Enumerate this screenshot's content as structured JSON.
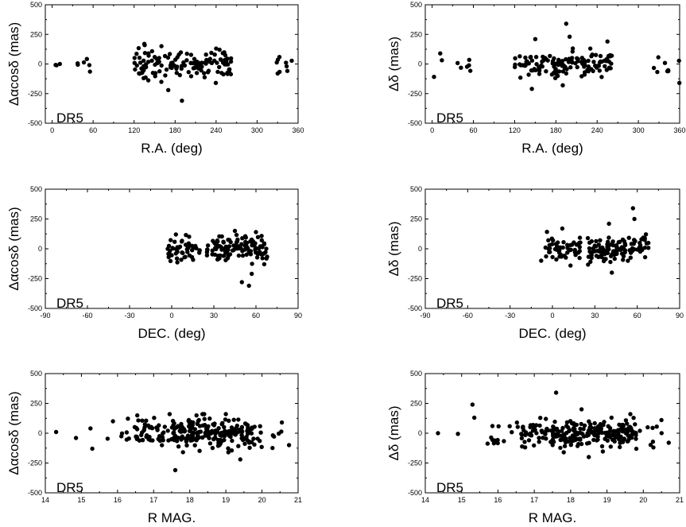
{
  "chart_data": [
    {
      "id": "ra_dra",
      "type": "scatter",
      "xlabel": "R.A. (deg)",
      "ylabel": "Δαcosδ (mas)",
      "annotation": "DR5",
      "xlim": [
        -10,
        360
      ],
      "ylim": [
        -500,
        500
      ],
      "xticks": [
        0,
        60,
        120,
        180,
        240,
        300,
        360
      ],
      "yticks": [
        -500,
        -250,
        0,
        250,
        500
      ],
      "x_clusters": [
        [
          2,
          15,
          3
        ],
        [
          36,
          58,
          6
        ],
        [
          120,
          262,
          135
        ],
        [
          322,
          360,
          9
        ]
      ],
      "y_sd": 55,
      "highlights": [
        [
          190,
          -310
        ],
        [
          170,
          -220
        ],
        [
          135,
          170
        ],
        [
          160,
          150
        ],
        [
          240,
          130
        ],
        [
          245,
          120
        ]
      ]
    },
    {
      "id": "ra_dd",
      "type": "scatter",
      "xlabel": "R.A. (deg)",
      "ylabel": "Δδ (mas)",
      "annotation": "DR5",
      "xlim": [
        -10,
        360
      ],
      "ylim": [
        -500,
        500
      ],
      "xticks": [
        0,
        60,
        120,
        180,
        240,
        300,
        360
      ],
      "yticks": [
        -500,
        -250,
        0,
        250,
        500
      ],
      "x_clusters": [
        [
          2,
          15,
          3
        ],
        [
          36,
          58,
          6
        ],
        [
          120,
          262,
          135
        ],
        [
          322,
          360,
          9
        ]
      ],
      "y_sd": 55,
      "highlights": [
        [
          195,
          340
        ],
        [
          200,
          230
        ],
        [
          150,
          210
        ],
        [
          255,
          190
        ],
        [
          145,
          -210
        ],
        [
          190,
          -180
        ],
        [
          230,
          130
        ]
      ]
    },
    {
      "id": "dec_dra",
      "type": "scatter",
      "xlabel": "DEC. (deg)",
      "ylabel": "Δαcosδ (mas)",
      "annotation": "DR5",
      "xlim": [
        -90,
        90
      ],
      "ylim": [
        -500,
        500
      ],
      "xticks": [
        -90,
        -60,
        -30,
        0,
        30,
        60,
        90
      ],
      "yticks": [
        -500,
        -250,
        0,
        250,
        500
      ],
      "x_clusters": [
        [
          -10,
          12,
          1
        ],
        [
          -3,
          20,
          50
        ],
        [
          25,
          68,
          120
        ]
      ],
      "y_sd": 55,
      "highlights": [
        [
          55,
          -310
        ],
        [
          50,
          -280
        ],
        [
          57,
          -210
        ],
        [
          3,
          120
        ],
        [
          45,
          150
        ],
        [
          60,
          140
        ]
      ]
    },
    {
      "id": "dec_dd",
      "type": "scatter",
      "xlabel": "DEC. (deg)",
      "ylabel": "Δδ (mas)",
      "annotation": "DR5",
      "xlim": [
        -90,
        90
      ],
      "ylim": [
        -500,
        500
      ],
      "xticks": [
        -90,
        -60,
        -30,
        0,
        30,
        60,
        90
      ],
      "yticks": [
        -500,
        -250,
        0,
        250,
        500
      ],
      "x_clusters": [
        [
          -12,
          12,
          1
        ],
        [
          -5,
          20,
          50
        ],
        [
          25,
          68,
          120
        ]
      ],
      "y_sd": 55,
      "highlights": [
        [
          57,
          340
        ],
        [
          58,
          250
        ],
        [
          40,
          210
        ],
        [
          7,
          170
        ],
        [
          42,
          -200
        ],
        [
          -8,
          -100
        ]
      ]
    },
    {
      "id": "mag_dra",
      "type": "scatter",
      "xlabel": "R MAG.",
      "ylabel": "Δαcosδ (mas)",
      "annotation": "DR5",
      "xlim": [
        14,
        21
      ],
      "ylim": [
        -500,
        500
      ],
      "xticks": [
        14,
        15,
        16,
        17,
        18,
        19,
        20,
        21
      ],
      "yticks": [
        -500,
        -250,
        0,
        250,
        500
      ],
      "x_clusters": [
        [
          15.7,
          20.6,
          80
        ],
        [
          16.5,
          17.5,
          30
        ],
        [
          17.5,
          19.8,
          160
        ]
      ],
      "y_sd": 55,
      "highlights": [
        [
          14.3,
          10
        ],
        [
          14.85,
          -40
        ],
        [
          15.25,
          40
        ],
        [
          15.3,
          -130
        ],
        [
          17.6,
          -310
        ],
        [
          20.75,
          -100
        ],
        [
          20.55,
          90
        ],
        [
          19.4,
          -220
        ],
        [
          19.0,
          160
        ]
      ]
    },
    {
      "id": "mag_dd",
      "type": "scatter",
      "xlabel": "R MAG.",
      "ylabel": "Δδ (mas)",
      "annotation": "DR5",
      "xlim": [
        14,
        21
      ],
      "ylim": [
        -500,
        500
      ],
      "xticks": [
        14,
        15,
        16,
        17,
        18,
        19,
        20,
        21
      ],
      "yticks": [
        -500,
        -250,
        0,
        250,
        500
      ],
      "x_clusters": [
        [
          15.7,
          20.6,
          80
        ],
        [
          16.5,
          17.5,
          30
        ],
        [
          17.5,
          19.8,
          160
        ]
      ],
      "y_sd": 55,
      "highlights": [
        [
          14.35,
          0
        ],
        [
          14.9,
          -5
        ],
        [
          15.3,
          240
        ],
        [
          15.35,
          130
        ],
        [
          17.6,
          340
        ],
        [
          18.3,
          200
        ],
        [
          18.5,
          -200
        ],
        [
          20.7,
          -80
        ],
        [
          20.5,
          110
        ]
      ]
    }
  ]
}
